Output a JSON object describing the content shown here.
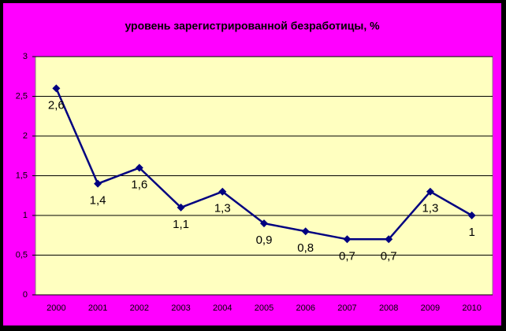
{
  "chart_data": {
    "type": "line",
    "title": "уровень зарегистрированной безработицы, %",
    "categories": [
      "2000",
      "2001",
      "2002",
      "2003",
      "2004",
      "2005",
      "2006",
      "2007",
      "2008",
      "2009",
      "2010"
    ],
    "values": [
      2.6,
      1.4,
      1.6,
      1.1,
      1.3,
      0.9,
      0.8,
      0.7,
      0.7,
      1.3,
      1
    ],
    "value_labels": [
      "2,6",
      "1,4",
      "1,6",
      "1,1",
      "1,3",
      "0,9",
      "0,8",
      "0,7",
      "0,7",
      "1,3",
      "1"
    ],
    "color": "#000080",
    "ylim": [
      0,
      3
    ],
    "yticks": [
      0,
      {
        "value": 0.5,
        "label": "0,5"
      },
      1,
      {
        "value": 1.5,
        "label": "1,5"
      },
      2,
      {
        "value": 2.5,
        "label": "2,5"
      },
      3
    ],
    "grid": true
  }
}
